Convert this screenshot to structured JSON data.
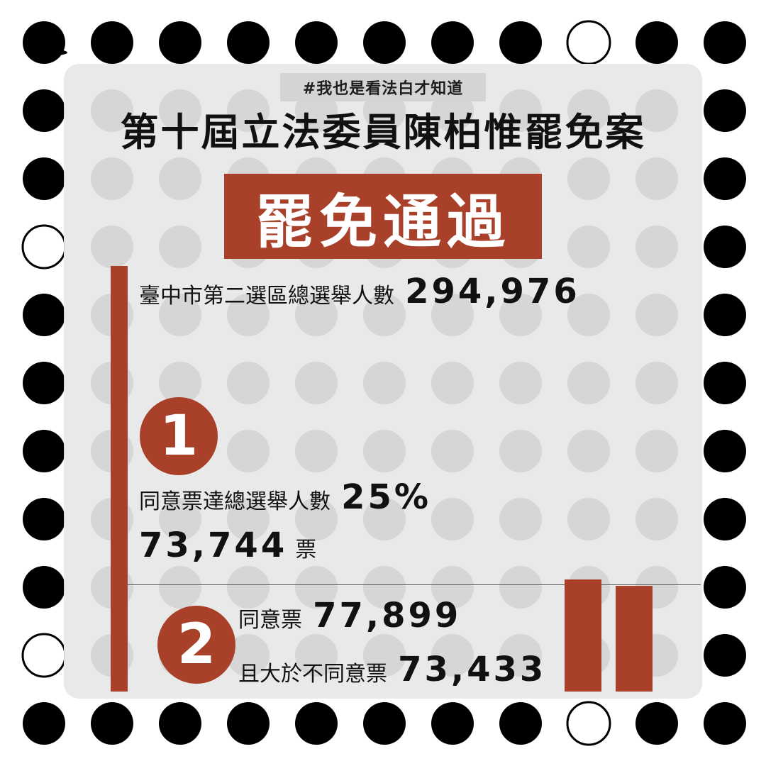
{
  "hashtag": "#我也是看法白才知道",
  "title": "第十屆立法委員陳柏惟罷免案",
  "result": "罷免通過",
  "electorate": {
    "label": "臺中市第二選區總選舉人數",
    "value": "294,976"
  },
  "condition1": {
    "number": "1",
    "label": "同意票達總選舉人數",
    "percent": "25%",
    "votes": "73,744",
    "votes_unit": "票"
  },
  "condition2": {
    "number": "2",
    "agree_label": "同意票",
    "agree_value": "77,899",
    "disagree_label": "且大於不同意票",
    "disagree_value": "73,433"
  },
  "colors": {
    "accent": "#a8402a",
    "panel": "#e9e9e9",
    "dot": "#000000"
  },
  "logo_icon": "bundle-of-sticks-icon",
  "chart_data": {
    "type": "bar",
    "categories": [
      "同意票",
      "不同意票"
    ],
    "values": [
      77899,
      73433
    ],
    "ylim": [
      0,
      77899
    ]
  }
}
